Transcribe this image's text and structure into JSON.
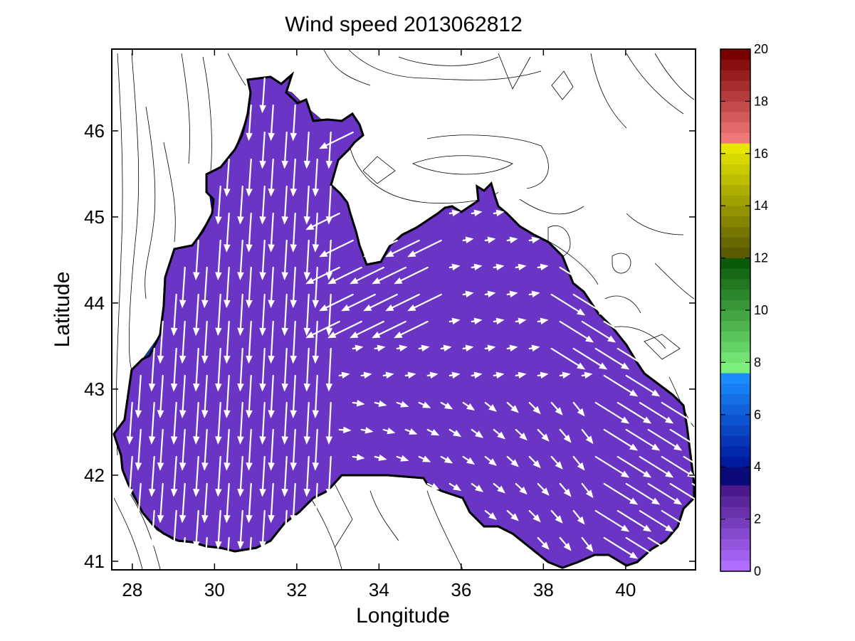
{
  "title": "Wind speed 2013062812",
  "chart_data": {
    "type": "heatmap",
    "title": "Wind speed 2013062812",
    "xlabel": "Longitude",
    "ylabel": "Latitude",
    "xlim": [
      27.5,
      41.7
    ],
    "ylim": [
      40.9,
      46.95
    ],
    "xticks": [
      "28",
      "30",
      "32",
      "34",
      "36",
      "38",
      "40"
    ],
    "yticks": [
      "41",
      "42",
      "43",
      "44",
      "45",
      "46"
    ],
    "colorbar": {
      "range": [
        0,
        20
      ],
      "ticks": [
        "0",
        "2",
        "4",
        "6",
        "8",
        "10",
        "12",
        "14",
        "16",
        "18",
        "20"
      ],
      "bands": [
        {
          "from": 0,
          "to": 3.3,
          "colors": [
            "#b06cff",
            "#4a1a8a"
          ]
        },
        {
          "from": 3.3,
          "to": 4,
          "colors": [
            "#0a0a78",
            "#0a0a78"
          ]
        },
        {
          "from": 4,
          "to": 7.6,
          "colors": [
            "#001aa0",
            "#1a8cff"
          ]
        },
        {
          "from": 7.6,
          "to": 12,
          "colors": [
            "#7cf07c",
            "#0a5a0a"
          ]
        },
        {
          "from": 12,
          "to": 16.4,
          "colors": [
            "#5a5a00",
            "#e6e600"
          ]
        },
        {
          "from": 16.4,
          "to": 20,
          "colors": [
            "#f07878",
            "#780000"
          ]
        }
      ]
    },
    "grid": false,
    "legend": "colorbar-right"
  }
}
